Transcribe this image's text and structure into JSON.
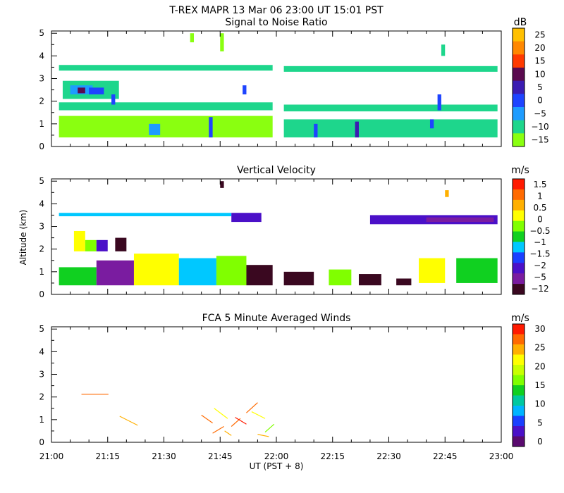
{
  "figure": {
    "title": "T-REX   MAPR 13 Mar 06   23:00 UT   15:01   PST",
    "xlabel": "UT  (PST + 8)",
    "ylabel": "Altitude (km)"
  },
  "chart_data": [
    {
      "type": "heatmap",
      "title": "Signal to Noise Ratio",
      "unit": "dB",
      "xlim": [
        "21:00",
        "23:00"
      ],
      "x_ticks": [
        "21:00",
        "21:15",
        "21:30",
        "21:45",
        "22:00",
        "22:15",
        "22:30",
        "22:45",
        "23:00"
      ],
      "ylim": [
        0,
        5.1
      ],
      "y_ticks": [
        0,
        1,
        2,
        3,
        4,
        5
      ],
      "colorbar": {
        "labels": [
          "25",
          "20",
          "15",
          "10",
          "5",
          "0",
          "−5",
          "−10",
          "−15"
        ],
        "colors": [
          "#ffc000",
          "#ff8800",
          "#ff3a00",
          "#5a0a4f",
          "#3b1cb2",
          "#1e44ff",
          "#1e9cff",
          "#1ed68c",
          "#8aff10"
        ]
      },
      "data_gaps": [
        [
          "22:00",
          "22:02"
        ]
      ],
      "cells": [
        {
          "x": [
            "21:02",
            "21:59"
          ],
          "y": [
            3.35,
            3.6
          ],
          "level": 1
        },
        {
          "x": [
            "22:02",
            "22:59"
          ],
          "y": [
            3.3,
            3.55
          ],
          "level": 1
        },
        {
          "x": [
            "21:02",
            "21:59"
          ],
          "y": [
            1.6,
            1.95
          ],
          "level": 1
        },
        {
          "x": [
            "22:02",
            "22:59"
          ],
          "y": [
            1.55,
            1.85
          ],
          "level": 1
        },
        {
          "x": [
            "21:02",
            "21:59"
          ],
          "y": [
            0.4,
            1.35
          ],
          "level": 0
        },
        {
          "x": [
            "22:02",
            "22:59"
          ],
          "y": [
            0.4,
            1.2
          ],
          "level": 1
        },
        {
          "x": [
            "21:03",
            "21:18"
          ],
          "y": [
            2.1,
            2.9
          ],
          "level": 1
        },
        {
          "x": [
            "21:05",
            "21:11"
          ],
          "y": [
            2.3,
            2.7
          ],
          "level": 2
        },
        {
          "x": [
            "21:07",
            "21:09"
          ],
          "y": [
            2.35,
            2.6
          ],
          "level": 5
        },
        {
          "x": [
            "21:10",
            "21:14"
          ],
          "y": [
            2.3,
            2.6
          ],
          "level": 3
        },
        {
          "x": [
            "21:16",
            "21:17"
          ],
          "y": [
            1.85,
            2.3
          ],
          "level": 3
        },
        {
          "x": [
            "21:26",
            "21:29"
          ],
          "y": [
            0.5,
            1.0
          ],
          "level": 2
        },
        {
          "x": [
            "21:42",
            "21:43"
          ],
          "y": [
            0.4,
            1.3
          ],
          "level": 3
        },
        {
          "x": [
            "21:51",
            "21:52"
          ],
          "y": [
            2.3,
            2.7
          ],
          "level": 3
        },
        {
          "x": [
            "22:10",
            "22:11"
          ],
          "y": [
            0.4,
            1.0
          ],
          "level": 3
        },
        {
          "x": [
            "22:21",
            "22:22"
          ],
          "y": [
            0.4,
            1.1
          ],
          "level": 4
        },
        {
          "x": [
            "22:43",
            "22:44"
          ],
          "y": [
            1.6,
            2.3
          ],
          "level": 3
        },
        {
          "x": [
            "22:41",
            "22:42"
          ],
          "y": [
            0.8,
            1.2
          ],
          "level": 3
        },
        {
          "x": [
            "21:37",
            "21:38"
          ],
          "y": [
            4.6,
            5.0
          ],
          "level": 0
        },
        {
          "x": [
            "21:45",
            "21:46"
          ],
          "y": [
            4.2,
            5.0
          ],
          "level": 0
        },
        {
          "x": [
            "22:44",
            "22:45"
          ],
          "y": [
            4.0,
            4.5
          ],
          "level": 1
        }
      ]
    },
    {
      "type": "heatmap",
      "title": "Vertical Velocity",
      "unit": "m/s",
      "xlim": [
        "21:00",
        "23:00"
      ],
      "x_ticks": [
        "21:00",
        "21:15",
        "21:30",
        "21:45",
        "22:00",
        "22:15",
        "22:30",
        "22:45",
        "23:00"
      ],
      "ylim": [
        0,
        5.1
      ],
      "y_ticks": [
        0,
        1,
        2,
        3,
        4,
        5
      ],
      "colorbar": {
        "labels": [
          "1.5",
          "1",
          "0.5",
          "0",
          "−0.5",
          "−1",
          "−1.5",
          "−2",
          "−5",
          "−12"
        ],
        "colors": [
          "#ff1a00",
          "#ff6a00",
          "#ffb000",
          "#ffff00",
          "#80ff00",
          "#10d020",
          "#00c8ff",
          "#1a40ff",
          "#4b10c8",
          "#7a1ca0",
          "#3a0820"
        ]
      },
      "cells": [
        {
          "x": [
            "21:02",
            "21:48"
          ],
          "y": [
            3.45,
            3.6
          ],
          "level": 4
        },
        {
          "x": [
            "21:48",
            "21:56"
          ],
          "y": [
            3.2,
            3.6
          ],
          "level": 2
        },
        {
          "x": [
            "22:25",
            "22:59"
          ],
          "y": [
            3.1,
            3.5
          ],
          "level": 2
        },
        {
          "x": [
            "22:40",
            "22:58"
          ],
          "y": [
            3.2,
            3.4
          ],
          "level": 1
        },
        {
          "x": [
            "21:06",
            "21:09"
          ],
          "y": [
            1.9,
            2.8
          ],
          "level": 7
        },
        {
          "x": [
            "21:09",
            "21:12"
          ],
          "y": [
            1.9,
            2.4
          ],
          "level": 6
        },
        {
          "x": [
            "21:12",
            "21:15"
          ],
          "y": [
            1.9,
            2.4
          ],
          "level": 2
        },
        {
          "x": [
            "21:17",
            "21:20"
          ],
          "y": [
            1.9,
            2.5
          ],
          "level": 0
        },
        {
          "x": [
            "21:02",
            "21:12"
          ],
          "y": [
            0.4,
            1.2
          ],
          "level": 5
        },
        {
          "x": [
            "21:12",
            "21:22"
          ],
          "y": [
            0.4,
            1.5
          ],
          "level": 1
        },
        {
          "x": [
            "21:22",
            "21:34"
          ],
          "y": [
            0.4,
            1.8
          ],
          "level": 7
        },
        {
          "x": [
            "21:34",
            "21:44"
          ],
          "y": [
            0.4,
            1.6
          ],
          "level": 4
        },
        {
          "x": [
            "21:44",
            "21:52"
          ],
          "y": [
            0.4,
            1.7
          ],
          "level": 6
        },
        {
          "x": [
            "21:52",
            "21:59"
          ],
          "y": [
            0.4,
            1.3
          ],
          "level": 0
        },
        {
          "x": [
            "22:02",
            "22:10"
          ],
          "y": [
            0.4,
            1.0
          ],
          "level": 0
        },
        {
          "x": [
            "22:14",
            "22:20"
          ],
          "y": [
            0.4,
            1.1
          ],
          "level": 6
        },
        {
          "x": [
            "22:22",
            "22:28"
          ],
          "y": [
            0.4,
            0.9
          ],
          "level": 0
        },
        {
          "x": [
            "22:32",
            "22:36"
          ],
          "y": [
            0.4,
            0.7
          ],
          "level": 0
        },
        {
          "x": [
            "22:38",
            "22:45"
          ],
          "y": [
            0.5,
            1.6
          ],
          "level": 7
        },
        {
          "x": [
            "22:48",
            "22:59"
          ],
          "y": [
            0.5,
            1.6
          ],
          "level": 5
        },
        {
          "x": [
            "21:45",
            "21:46"
          ],
          "y": [
            4.7,
            5.0
          ],
          "level": 0
        },
        {
          "x": [
            "22:45",
            "22:46"
          ],
          "y": [
            4.3,
            4.6
          ],
          "level": 8
        }
      ]
    },
    {
      "type": "scatter",
      "title": "FCA 5 Minute Averaged Winds",
      "unit": "m/s",
      "xlim": [
        "21:00",
        "23:00"
      ],
      "x_ticks": [
        "21:00",
        "21:15",
        "21:30",
        "21:45",
        "22:00",
        "22:15",
        "22:30",
        "22:45",
        "23:00"
      ],
      "ylim": [
        0,
        5.1
      ],
      "y_ticks": [
        0,
        1,
        2,
        3,
        4,
        5
      ],
      "colorbar": {
        "labels": [
          "30",
          "25",
          "20",
          "15",
          "10",
          "5",
          "0"
        ],
        "colors": [
          "#ff1a00",
          "#ff6a00",
          "#ffb000",
          "#ffff00",
          "#c8ff00",
          "#80ff00",
          "#10d020",
          "#00c8a0",
          "#00b4ff",
          "#1a40ff",
          "#4b10c8",
          "#5a0a6f"
        ]
      },
      "barbs": [
        {
          "x": "21:08",
          "y": 2.12,
          "dx": 0.12,
          "dy": 0.0,
          "level": 10
        },
        {
          "x": "21:23",
          "y": 0.75,
          "dx": -0.08,
          "dy": 0.4,
          "level": 9
        },
        {
          "x": "21:43",
          "y": 0.85,
          "dx": -0.05,
          "dy": 0.35,
          "level": 10
        },
        {
          "x": "21:43",
          "y": 0.4,
          "dx": 0.05,
          "dy": 0.3,
          "level": 10
        },
        {
          "x": "21:47",
          "y": 1.05,
          "dx": -0.06,
          "dy": 0.45,
          "level": 8
        },
        {
          "x": "21:48",
          "y": 0.7,
          "dx": 0.04,
          "dy": 0.35,
          "level": 10
        },
        {
          "x": "21:48",
          "y": 0.3,
          "dx": -0.03,
          "dy": 0.2,
          "level": 9
        },
        {
          "x": "21:52",
          "y": 1.3,
          "dx": 0.05,
          "dy": 0.45,
          "level": 10
        },
        {
          "x": "21:52",
          "y": 0.8,
          "dx": -0.05,
          "dy": 0.3,
          "level": 11
        },
        {
          "x": "21:57",
          "y": 1.05,
          "dx": -0.06,
          "dy": 0.3,
          "level": 8
        },
        {
          "x": "21:57",
          "y": 0.45,
          "dx": 0.04,
          "dy": 0.35,
          "level": 6
        },
        {
          "x": "21:58",
          "y": 0.25,
          "dx": -0.05,
          "dy": 0.1,
          "level": 9
        }
      ]
    }
  ]
}
